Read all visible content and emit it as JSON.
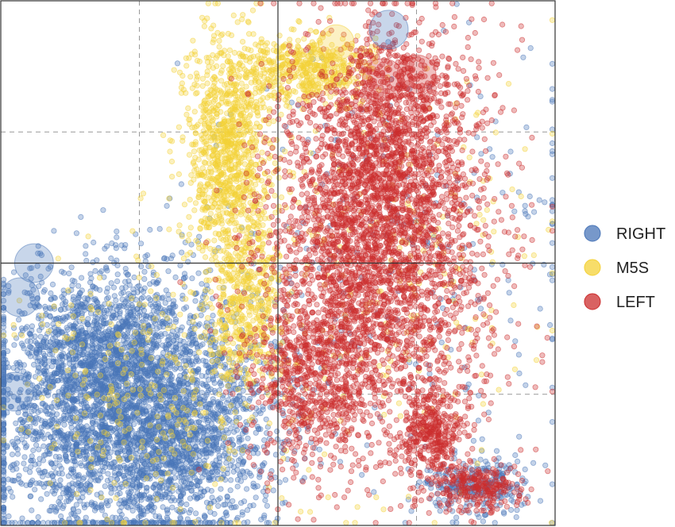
{
  "chart_data": {
    "type": "scatter",
    "title": "",
    "xlabel": "",
    "ylabel": "",
    "xlim": [
      -1,
      1
    ],
    "ylim": [
      -1,
      1
    ],
    "grid": true,
    "legend_position": "right",
    "series": [
      {
        "name": "RIGHT",
        "color": "#4a76b8",
        "points": 5200,
        "clusters": [
          {
            "cx": -0.55,
            "cy": -0.55,
            "sx": 0.24,
            "sy": 0.24,
            "w": 0.72
          },
          {
            "cx": -0.65,
            "cy": -0.3,
            "sx": 0.16,
            "sy": 0.12,
            "w": 0.1
          },
          {
            "cx": -0.3,
            "cy": -0.72,
            "sx": 0.14,
            "sy": 0.14,
            "w": 0.08
          },
          {
            "cx": 0.72,
            "cy": -0.85,
            "sx": 0.1,
            "sy": 0.06,
            "w": 0.05
          },
          {
            "cx": 0.45,
            "cy": 0.05,
            "sx": 0.4,
            "sy": 0.4,
            "w": 0.05
          }
        ],
        "highlights": [
          {
            "x": 0.4,
            "y": 0.89,
            "r": 0.07
          },
          {
            "x": -0.88,
            "y": -0.0,
            "r": 0.07
          },
          {
            "x": -0.93,
            "y": -0.13,
            "r": 0.07
          },
          {
            "x": -0.95,
            "y": -0.49,
            "r": 0.07
          }
        ]
      },
      {
        "name": "M5S",
        "color": "#f4d137",
        "points": 2600,
        "clusters": [
          {
            "cx": -0.18,
            "cy": 0.42,
            "sx": 0.08,
            "sy": 0.22,
            "w": 0.4
          },
          {
            "cx": 0.1,
            "cy": 0.74,
            "sx": 0.12,
            "sy": 0.06,
            "w": 0.2
          },
          {
            "cx": -0.12,
            "cy": -0.15,
            "sx": 0.07,
            "sy": 0.15,
            "w": 0.18
          },
          {
            "cx": -0.45,
            "cy": -0.5,
            "sx": 0.25,
            "sy": 0.25,
            "w": 0.12
          },
          {
            "cx": 0.4,
            "cy": -0.1,
            "sx": 0.3,
            "sy": 0.4,
            "w": 0.1
          }
        ],
        "highlights": [
          {
            "x": 0.21,
            "y": 0.84,
            "r": 0.065
          }
        ]
      },
      {
        "name": "LEFT",
        "color": "#cc2d2d",
        "points": 5200,
        "clusters": [
          {
            "cx": 0.35,
            "cy": 0.05,
            "sx": 0.2,
            "sy": 0.35,
            "w": 0.62
          },
          {
            "cx": 0.42,
            "cy": 0.55,
            "sx": 0.14,
            "sy": 0.18,
            "w": 0.14
          },
          {
            "cx": 0.12,
            "cy": -0.45,
            "sx": 0.12,
            "sy": 0.16,
            "w": 0.12
          },
          {
            "cx": 0.55,
            "cy": -0.65,
            "sx": 0.06,
            "sy": 0.08,
            "w": 0.07
          },
          {
            "cx": 0.72,
            "cy": -0.86,
            "sx": 0.08,
            "sy": 0.04,
            "w": 0.05
          }
        ],
        "highlights": [
          {
            "x": 0.38,
            "y": 0.7,
            "r": 0.075
          },
          {
            "x": 0.5,
            "y": 0.72,
            "r": 0.07
          }
        ]
      }
    ]
  }
}
